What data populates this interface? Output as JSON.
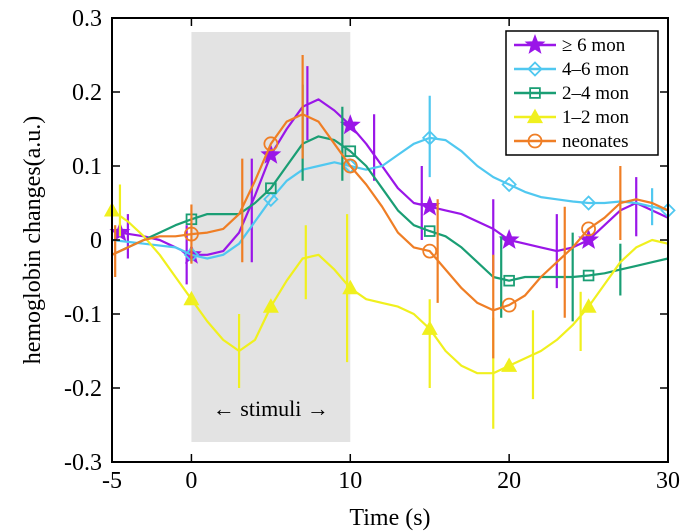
{
  "chart_data": {
    "type": "line",
    "title": "",
    "xlabel": "Time (s)",
    "ylabel": "hemoglobin changes(a.u.)",
    "xlim": [
      -5,
      30
    ],
    "ylim": [
      -0.3,
      0.3
    ],
    "x_ticks": [
      -5,
      0,
      10,
      20,
      30
    ],
    "x_tick_labels": [
      "-5",
      "0",
      "10",
      "20",
      "30"
    ],
    "y_ticks": [
      -0.3,
      -0.2,
      -0.1,
      0,
      0.1,
      0.2,
      0.3
    ],
    "y_tick_labels": [
      "-0.3",
      "-0.2",
      "-0.1",
      "0",
      "0.1",
      "0.2",
      "0.3"
    ],
    "grid": false,
    "legend_position": "top-right",
    "stimulus_region": {
      "x_start": 0,
      "x_end": 10,
      "label": "← stimuli →",
      "color": "#e3e3e3"
    },
    "series": [
      {
        "name": "≥ 6 mon",
        "color": "#9a16e8",
        "marker": "star",
        "x": [
          -4.5,
          -3,
          -2,
          -1,
          0,
          1,
          2,
          3,
          4,
          5,
          6,
          7,
          8,
          9,
          10,
          11,
          12,
          13,
          14,
          15,
          16,
          17,
          18,
          19,
          20,
          21,
          22,
          23,
          24,
          25,
          26,
          27,
          28,
          29,
          30
        ],
        "values": [
          0.01,
          0.005,
          0,
          -0.01,
          -0.02,
          -0.02,
          -0.015,
          0.01,
          0.06,
          0.115,
          0.15,
          0.18,
          0.19,
          0.175,
          0.155,
          0.13,
          0.1,
          0.07,
          0.05,
          0.045,
          0.04,
          0.035,
          0.025,
          0.015,
          0,
          -0.005,
          -0.01,
          -0.015,
          -0.01,
          0,
          0.02,
          0.04,
          0.05,
          0.04,
          0.03
        ],
        "marker_x": [
          -4.5,
          0,
          5,
          10,
          15,
          20,
          25
        ],
        "marker_y": [
          0.01,
          -0.02,
          0.115,
          0.155,
          0.045,
          0,
          0
        ],
        "errorbar_x": [
          -4,
          -0.3,
          3.8,
          7.3,
          11.5,
          14.5,
          19,
          23,
          28
        ],
        "errorbar_y": [
          0.005,
          -0.02,
          0.04,
          0.185,
          0.125,
          0.05,
          0.005,
          -0.015,
          0.045
        ],
        "errorbar_err": [
          0.03,
          0.04,
          0.07,
          0.05,
          0.045,
          0.05,
          0.05,
          0.05,
          0.04
        ]
      },
      {
        "name": "4–6 mon",
        "color": "#50c8f0",
        "marker": "diamond",
        "x": [
          -5,
          -3,
          -1,
          0,
          1,
          2,
          3,
          4,
          5,
          6,
          7,
          8,
          9,
          10,
          11,
          12,
          13,
          14,
          15,
          16,
          17,
          18,
          19,
          20,
          21,
          22,
          23,
          24,
          25,
          26,
          27,
          28,
          29,
          30
        ],
        "values": [
          0,
          -0.005,
          -0.01,
          -0.02,
          -0.025,
          -0.02,
          -0.005,
          0.025,
          0.055,
          0.08,
          0.095,
          0.1,
          0.105,
          0.1,
          0.095,
          0.1,
          0.115,
          0.13,
          0.138,
          0.135,
          0.12,
          0.1,
          0.085,
          0.075,
          0.065,
          0.058,
          0.055,
          0.052,
          0.05,
          0.05,
          0.052,
          0.05,
          0.045,
          0.04
        ],
        "marker_x": [
          0,
          5,
          10,
          15,
          20,
          25,
          30
        ],
        "marker_y": [
          -0.02,
          0.055,
          0.1,
          0.138,
          0.075,
          0.05,
          0.04
        ],
        "errorbar_x": [
          15,
          29
        ],
        "errorbar_y": [
          0.14,
          0.045
        ],
        "errorbar_err": [
          0.055,
          0.025
        ]
      },
      {
        "name": "2–4 mon",
        "color": "#1a9e74",
        "marker": "square",
        "x": [
          -5,
          -4,
          -3,
          -2,
          -1,
          0,
          1,
          2,
          3,
          4,
          5,
          6,
          7,
          8,
          9,
          10,
          11,
          12,
          13,
          14,
          15,
          16,
          17,
          18,
          19,
          20,
          21,
          22,
          23,
          24,
          25,
          26,
          27,
          28,
          29,
          30
        ],
        "values": [
          -0.02,
          -0.01,
          0,
          0.01,
          0.02,
          0.028,
          0.035,
          0.035,
          0.035,
          0.05,
          0.07,
          0.1,
          0.13,
          0.14,
          0.135,
          0.12,
          0.1,
          0.07,
          0.04,
          0.02,
          0.012,
          0.005,
          -0.01,
          -0.03,
          -0.05,
          -0.055,
          -0.05,
          -0.05,
          -0.05,
          -0.05,
          -0.048,
          -0.045,
          -0.04,
          -0.035,
          -0.03,
          -0.025
        ],
        "marker_x": [
          0,
          5,
          10,
          15,
          20,
          25
        ],
        "marker_y": [
          0.028,
          0.07,
          0.12,
          0.012,
          -0.055,
          -0.048
        ],
        "errorbar_x": [
          7,
          9.5,
          19.5,
          24,
          27
        ],
        "errorbar_y": [
          0.145,
          0.13,
          -0.05,
          -0.05,
          -0.04
        ],
        "errorbar_err": [
          0.065,
          0.05,
          0.055,
          0.06,
          0.035
        ]
      },
      {
        "name": "1–2 mon",
        "color": "#f0f01e",
        "marker": "triangle",
        "x": [
          -5,
          -4,
          -3,
          -2,
          -1,
          0,
          1,
          2,
          3,
          4,
          5,
          6,
          7,
          8,
          9,
          10,
          11,
          12,
          13,
          14,
          15,
          16,
          17,
          18,
          19,
          20,
          21,
          22,
          23,
          24,
          25,
          26,
          27,
          28,
          29,
          30
        ],
        "values": [
          0.04,
          0.025,
          0.005,
          -0.02,
          -0.05,
          -0.08,
          -0.11,
          -0.135,
          -0.15,
          -0.135,
          -0.09,
          -0.055,
          -0.025,
          -0.02,
          -0.04,
          -0.065,
          -0.08,
          -0.085,
          -0.09,
          -0.1,
          -0.12,
          -0.15,
          -0.17,
          -0.18,
          -0.18,
          -0.17,
          -0.16,
          -0.15,
          -0.135,
          -0.115,
          -0.09,
          -0.06,
          -0.03,
          -0.01,
          0,
          -0.005
        ],
        "marker_x": [
          -5,
          0,
          5,
          10,
          15,
          20,
          25
        ],
        "marker_y": [
          0.04,
          -0.08,
          -0.09,
          -0.065,
          -0.12,
          -0.17,
          -0.09
        ],
        "errorbar_x": [
          -4.5,
          3,
          7.2,
          9.8,
          15,
          19,
          21.5,
          24.5
        ],
        "errorbar_y": [
          0.04,
          -0.15,
          -0.03,
          -0.065,
          -0.14,
          -0.18,
          -0.155,
          -0.11
        ],
        "errorbar_err": [
          0.035,
          0.05,
          0.05,
          0.1,
          0.06,
          0.075,
          0.06,
          0.04
        ]
      },
      {
        "name": "neonates",
        "color": "#ef7e25",
        "marker": "circle",
        "x": [
          -5,
          -4,
          -3,
          -2,
          -1,
          0,
          1,
          2,
          3,
          4,
          5,
          6,
          7,
          8,
          9,
          10,
          11,
          12,
          13,
          14,
          15,
          16,
          17,
          18,
          19,
          20,
          21,
          22,
          23,
          24,
          25,
          26,
          27,
          28,
          29,
          30
        ],
        "values": [
          -0.02,
          -0.01,
          0,
          0.005,
          0.005,
          0.008,
          0.01,
          0.015,
          0.035,
          0.08,
          0.13,
          0.16,
          0.17,
          0.16,
          0.13,
          0.1,
          0.075,
          0.045,
          0.01,
          -0.01,
          -0.015,
          -0.04,
          -0.065,
          -0.085,
          -0.095,
          -0.088,
          -0.075,
          -0.05,
          -0.03,
          -0.01,
          0.015,
          0.03,
          0.05,
          0.055,
          0.05,
          0.04
        ],
        "marker_x": [
          0,
          5,
          10,
          15,
          20,
          25
        ],
        "marker_y": [
          0.008,
          0.13,
          0.1,
          -0.015,
          -0.088,
          0.015
        ],
        "errorbar_x": [
          -4.8,
          0,
          3.2,
          7,
          15.5,
          19,
          23.5,
          27
        ],
        "errorbar_y": [
          -0.015,
          0.008,
          0.04,
          0.18,
          -0.015,
          -0.09,
          -0.03,
          0.05
        ],
        "errorbar_err": [
          0.035,
          0.04,
          0.07,
          0.07,
          0.07,
          0.07,
          0.075,
          0.05
        ]
      }
    ]
  }
}
